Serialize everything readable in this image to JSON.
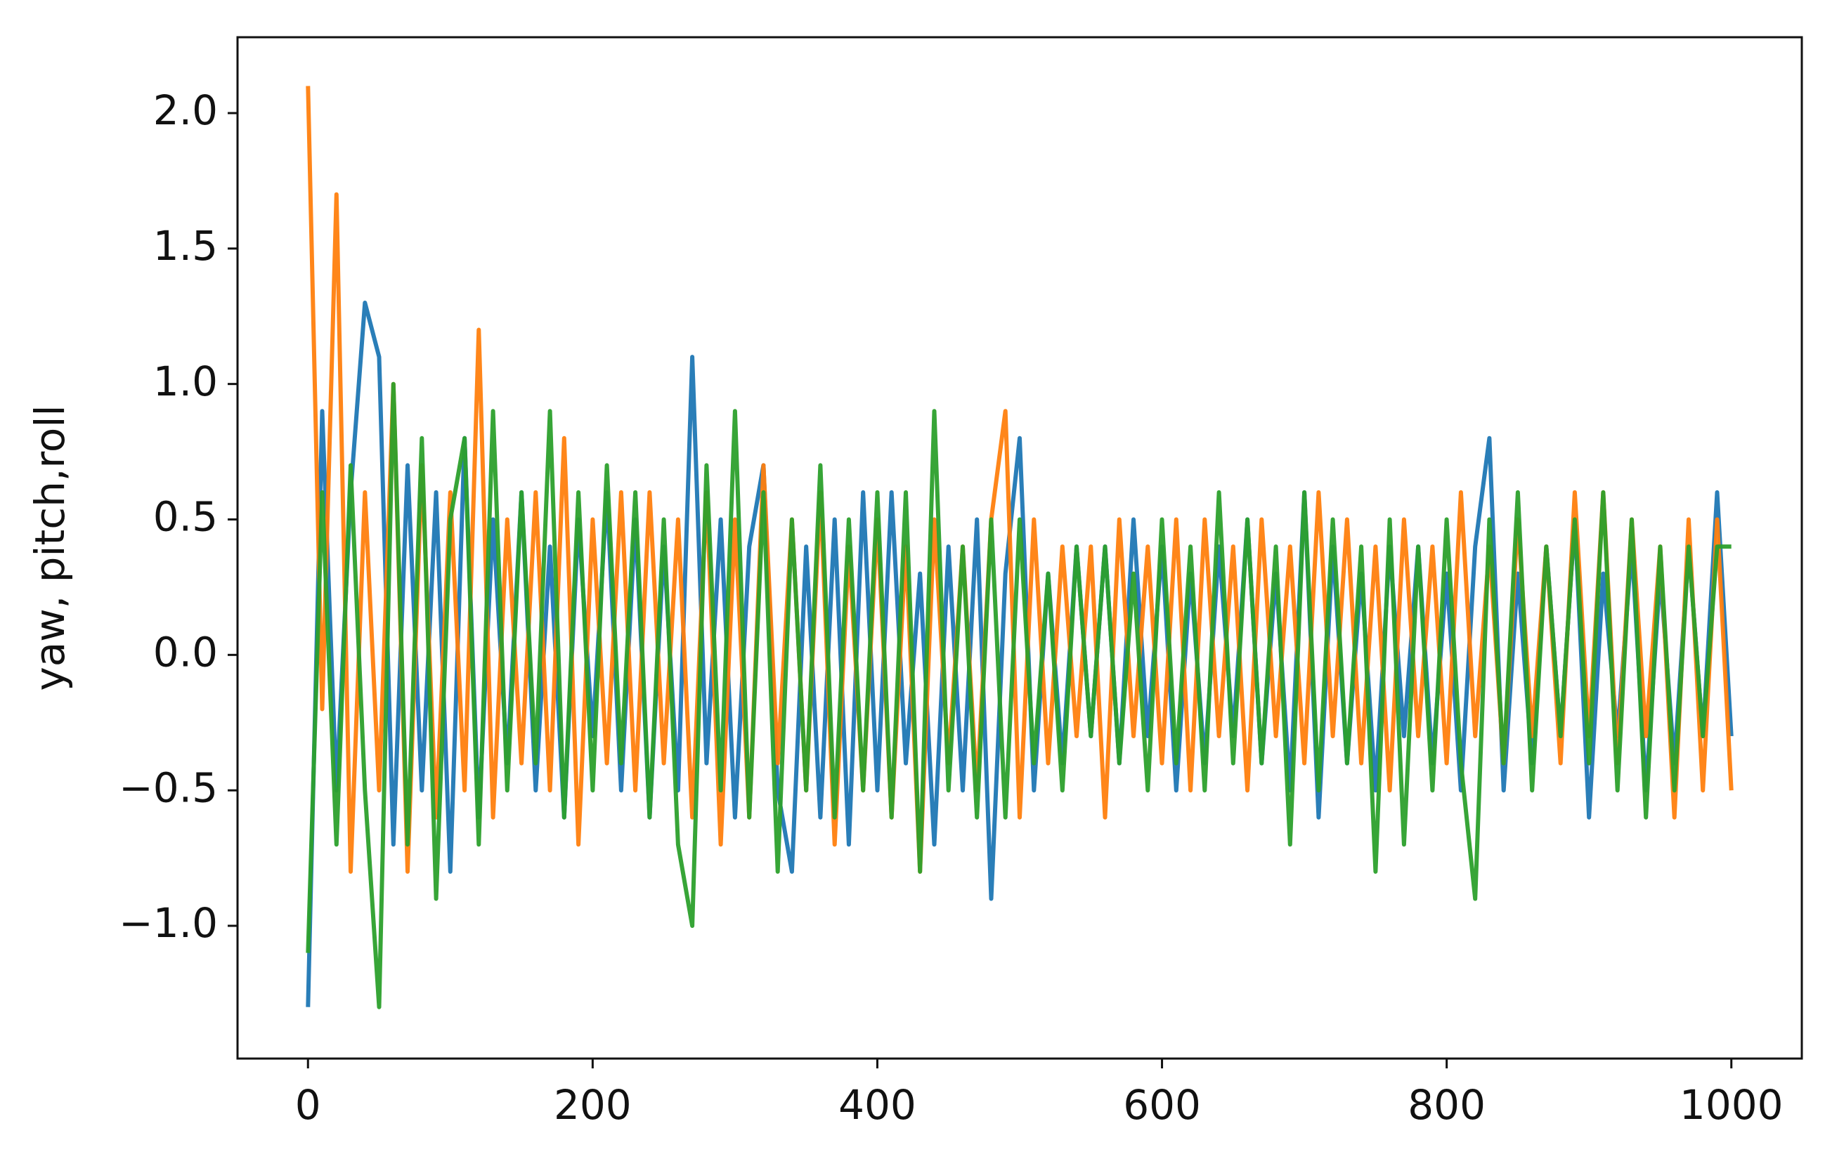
{
  "chart_data": {
    "type": "line",
    "y_label": "yaw, pitch,roll",
    "x": [
      0,
      10,
      20,
      30,
      40,
      50,
      60,
      70,
      80,
      90,
      100,
      110,
      120,
      130,
      140,
      150,
      160,
      170,
      180,
      190,
      200,
      210,
      220,
      230,
      240,
      250,
      260,
      270,
      280,
      290,
      300,
      310,
      320,
      330,
      340,
      350,
      360,
      370,
      380,
      390,
      400,
      410,
      420,
      430,
      440,
      450,
      460,
      470,
      480,
      490,
      500,
      510,
      520,
      530,
      540,
      550,
      560,
      570,
      580,
      590,
      600,
      610,
      620,
      630,
      640,
      650,
      660,
      670,
      680,
      690,
      700,
      710,
      720,
      730,
      740,
      750,
      760,
      770,
      780,
      790,
      800,
      810,
      820,
      830,
      840,
      850,
      860,
      870,
      880,
      890,
      900,
      910,
      920,
      930,
      940,
      950,
      960,
      970,
      980,
      990,
      1000
    ],
    "series": [
      {
        "color": "#1f77b4",
        "values": [
          -1.3,
          0.9,
          -0.5,
          0.6,
          1.3,
          1.1,
          -0.7,
          0.7,
          -0.5,
          0.6,
          -0.8,
          0.8,
          -0.6,
          0.5,
          -0.4,
          0.6,
          -0.5,
          0.4,
          -0.6,
          0.5,
          -0.3,
          0.6,
          -0.5,
          0.5,
          -0.6,
          0.4,
          -0.5,
          1.1,
          -0.4,
          0.5,
          -0.6,
          0.4,
          0.7,
          -0.5,
          -0.8,
          0.4,
          -0.6,
          0.5,
          -0.7,
          0.6,
          -0.5,
          0.6,
          -0.4,
          0.3,
          -0.7,
          0.4,
          -0.5,
          0.5,
          -0.9,
          0.3,
          0.8,
          -0.5,
          0.3,
          -0.4,
          0.4,
          -0.3,
          0.4,
          -0.4,
          0.5,
          -0.3,
          0.4,
          -0.5,
          0.3,
          -0.4,
          0.4,
          -0.3,
          0.5,
          -0.4,
          0.3,
          -0.5,
          0.6,
          -0.6,
          0.4,
          -0.4,
          0.3,
          -0.5,
          0.4,
          -0.3,
          0.4,
          -0.4,
          0.3,
          -0.5,
          0.4,
          0.8,
          -0.5,
          0.3,
          -0.4,
          0.4,
          -0.3,
          0.5,
          -0.6,
          0.3,
          -0.3,
          0.4,
          -0.5,
          0.3,
          -0.4,
          0.4,
          -0.3,
          0.6,
          -0.3
        ]
      },
      {
        "color": "#ff7f0e",
        "values": [
          2.1,
          -0.2,
          1.7,
          -0.8,
          0.6,
          -0.5,
          1.0,
          -0.8,
          0.7,
          -0.6,
          0.6,
          -0.5,
          1.2,
          -0.6,
          0.5,
          -0.4,
          0.6,
          -0.5,
          0.8,
          -0.7,
          0.5,
          -0.4,
          0.6,
          -0.5,
          0.6,
          -0.4,
          0.5,
          -0.6,
          0.6,
          -0.7,
          0.5,
          -0.6,
          0.7,
          -0.4,
          0.5,
          -0.5,
          0.6,
          -0.7,
          0.4,
          -0.5,
          0.5,
          -0.6,
          0.4,
          -0.8,
          0.5,
          -0.4,
          0.4,
          -0.5,
          0.5,
          0.9,
          -0.6,
          0.5,
          -0.4,
          0.4,
          -0.3,
          0.4,
          -0.6,
          0.5,
          -0.3,
          0.4,
          -0.4,
          0.5,
          -0.5,
          0.5,
          -0.3,
          0.4,
          -0.5,
          0.5,
          -0.3,
          0.4,
          -0.4,
          0.6,
          -0.3,
          0.5,
          -0.4,
          0.4,
          -0.5,
          0.5,
          -0.3,
          0.4,
          -0.4,
          0.6,
          -0.3,
          0.4,
          -0.4,
          0.5,
          -0.3,
          0.4,
          -0.4,
          0.6,
          -0.3,
          0.6,
          -0.4,
          0.5,
          -0.3,
          0.4,
          -0.6,
          0.5,
          -0.5,
          0.5,
          -0.5
        ]
      },
      {
        "color": "#2ca02c",
        "values": [
          -1.1,
          0.6,
          -0.7,
          0.7,
          -0.5,
          -1.3,
          1.0,
          -0.7,
          0.8,
          -0.9,
          0.5,
          0.8,
          -0.7,
          0.9,
          -0.5,
          0.6,
          -0.4,
          0.9,
          -0.6,
          0.6,
          -0.5,
          0.7,
          -0.4,
          0.6,
          -0.6,
          0.5,
          -0.7,
          -1.0,
          0.7,
          -0.5,
          0.9,
          -0.6,
          0.6,
          -0.8,
          0.5,
          -0.5,
          0.7,
          -0.6,
          0.5,
          -0.5,
          0.6,
          -0.6,
          0.6,
          -0.8,
          0.9,
          -0.5,
          0.4,
          -0.6,
          0.5,
          -0.6,
          0.5,
          -0.4,
          0.3,
          -0.5,
          0.4,
          -0.3,
          0.4,
          -0.4,
          0.3,
          -0.5,
          0.5,
          -0.4,
          0.4,
          -0.5,
          0.6,
          -0.4,
          0.5,
          -0.4,
          0.4,
          -0.7,
          0.6,
          -0.5,
          0.5,
          -0.4,
          0.4,
          -0.8,
          0.5,
          -0.7,
          0.4,
          -0.5,
          0.5,
          -0.4,
          -0.9,
          0.5,
          -0.4,
          0.6,
          -0.5,
          0.4,
          -0.3,
          0.5,
          -0.4,
          0.6,
          -0.5,
          0.5,
          -0.6,
          0.4,
          -0.5,
          0.4,
          -0.3,
          0.4,
          0.4
        ]
      }
    ],
    "xlim": [
      -49.5,
      1049.5
    ],
    "ylim": [
      -1.49,
      2.28
    ],
    "xticks": [
      0,
      200,
      400,
      600,
      800,
      1000
    ],
    "yticks": [
      {
        "value": -1,
        "label": "−1.0"
      },
      {
        "value": -0.5,
        "label": "−0.5"
      },
      {
        "value": 0,
        "label": "0.0"
      },
      {
        "value": 0.5,
        "label": "0.5"
      },
      {
        "value": 1,
        "label": "1.0"
      },
      {
        "value": 1.5,
        "label": "1.5"
      },
      {
        "value": 2,
        "label": "2.0"
      }
    ]
  }
}
